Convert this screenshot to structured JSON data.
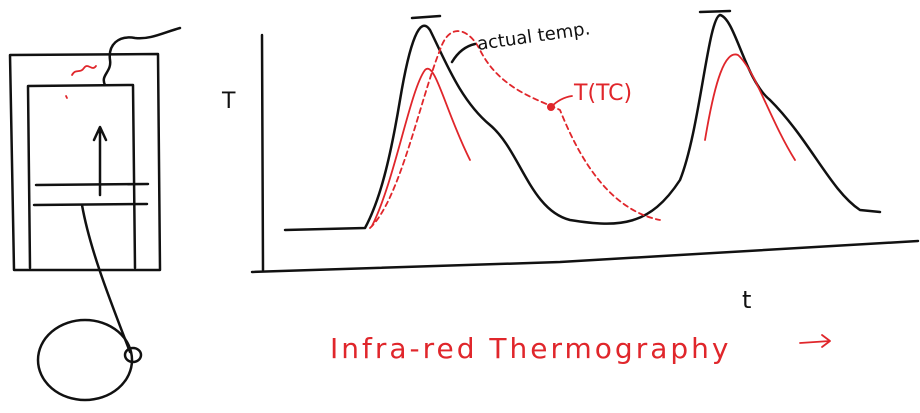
{
  "labels": {
    "y_axis": "T",
    "x_axis": "t",
    "curve_black": "actual temp.",
    "curve_red_dashed": "T(TC)",
    "caption": "Infra-red Thermography"
  }
}
